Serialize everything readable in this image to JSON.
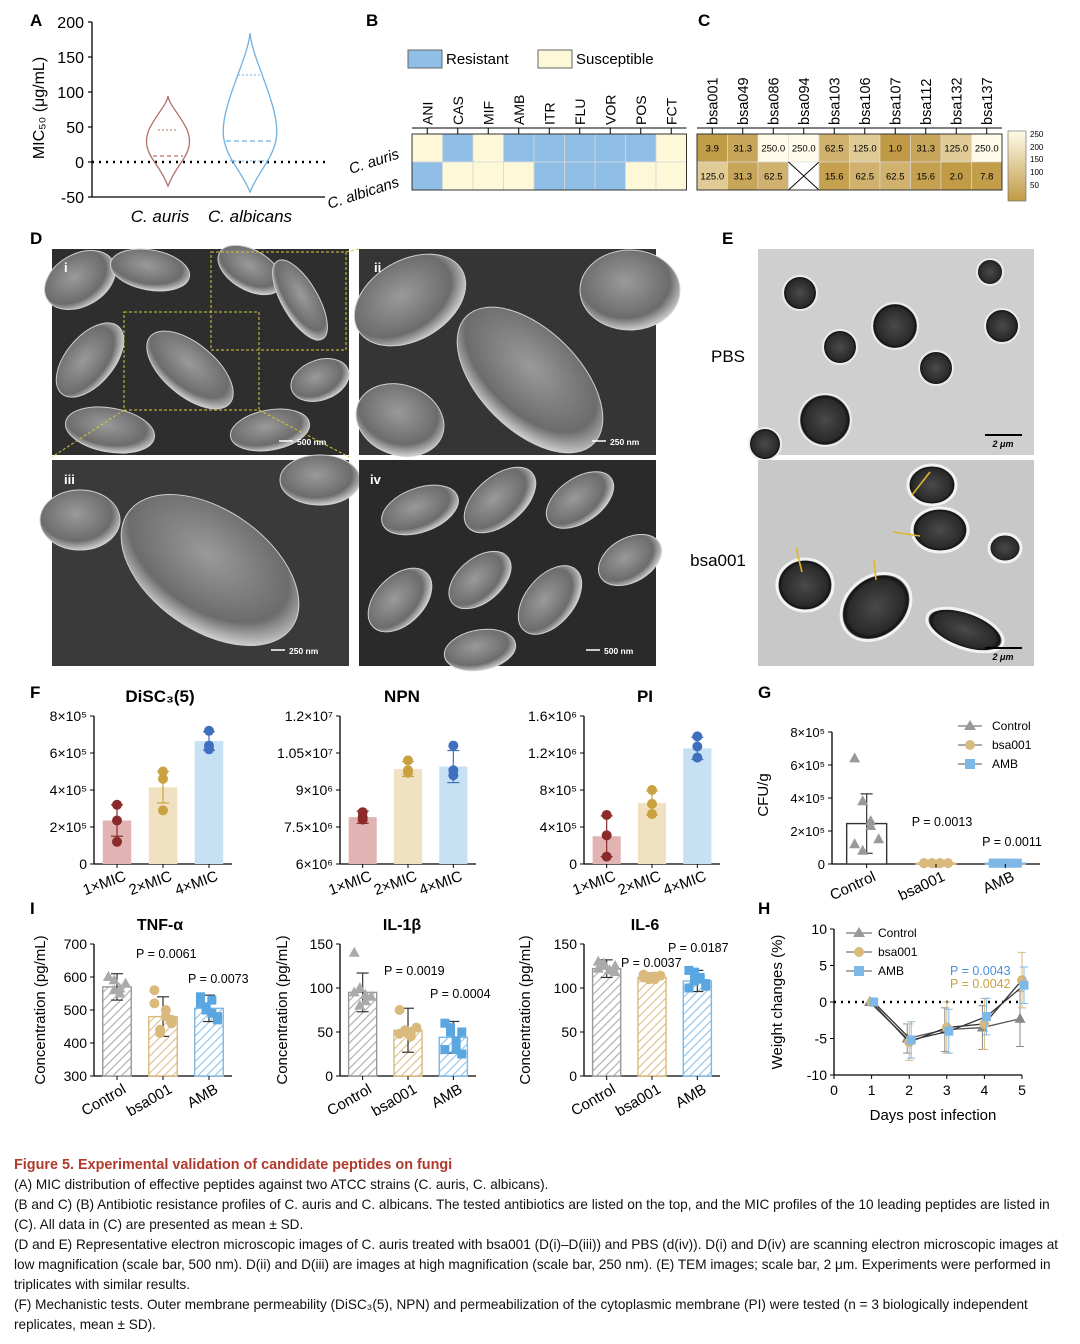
{
  "figure": {
    "panel_labels": [
      "A",
      "B",
      "C",
      "D",
      "E",
      "F",
      "G",
      "H",
      "I"
    ],
    "colors": {
      "auris": "#b5706a",
      "albicans": "#6fb0e0",
      "bsa001": "#d9b97c",
      "amb": "#7fb8e6",
      "control": "#999999",
      "dark_red": "#8b2a2a",
      "gold": "#c9a23f",
      "blue": "#3f6fbf"
    }
  },
  "panelA": {
    "ylabel": "MIC₅₀ (μg/mL)",
    "yticks": [
      "200",
      "150",
      "100",
      "50",
      "0",
      "-50"
    ],
    "categories": [
      "C. auris",
      "C. albicans"
    ]
  },
  "panelB": {
    "legend": [
      {
        "label": "Resistant",
        "color": "#8fbfe6"
      },
      {
        "label": "Susceptible",
        "color": "#fdf8d8"
      }
    ],
    "drugs": [
      "ANI",
      "CAS",
      "MIF",
      "AMB",
      "ITR",
      "FLU",
      "VOR",
      "POS",
      "FCT"
    ],
    "strains": [
      "C. auris",
      "C. albicans"
    ],
    "matrix": [
      [
        "S",
        "R",
        "S",
        "R",
        "R",
        "R",
        "R",
        "R",
        "S"
      ],
      [
        "R",
        "S",
        "S",
        "S",
        "R",
        "R",
        "R",
        "S",
        "S"
      ]
    ]
  },
  "panelC": {
    "peptides": [
      "bsa001",
      "bsa049",
      "bsa086",
      "bsa094",
      "bsa103",
      "bsa106",
      "bsa107",
      "bsa112",
      "bsa132",
      "bsa137"
    ],
    "values": [
      [
        "3.9",
        "31.3",
        "250.0",
        "250.0",
        "62.5",
        "125.0",
        "1.0",
        "31.3",
        "125.0",
        "250.0"
      ],
      [
        "125.0",
        "31.3",
        "62.5",
        "X",
        "15.6",
        "62.5",
        "62.5",
        "15.6",
        "2.0",
        "7.8"
      ]
    ],
    "scale_ticks": [
      "250",
      "200",
      "150",
      "100",
      "50"
    ]
  },
  "panelD": {
    "sub_labels": [
      "i",
      "ii",
      "iii",
      "iv"
    ],
    "scale_bars": [
      "500 nm",
      "250 nm",
      "250 nm",
      "500 nm"
    ]
  },
  "panelE": {
    "rows": [
      "PBS",
      "bsa001"
    ],
    "scale_bar": "2 μm"
  },
  "panelF": {
    "titles": [
      "DiSC₃(5)",
      "NPN",
      "PI"
    ],
    "categories": [
      "1×MIC",
      "2×MIC",
      "4×MIC"
    ],
    "yticks": [
      [
        "8×10⁵",
        "6×10⁵",
        "4×10⁵",
        "2×10⁵",
        "0"
      ],
      [
        "1.2×10⁷",
        "1.05×10⁷",
        "9×10⁶",
        "7.5×10⁶",
        "6×10⁶"
      ],
      [
        "1.6×10⁶",
        "1.2×10⁶",
        "8×10⁵",
        "4×10⁵",
        "0"
      ]
    ]
  },
  "panelG": {
    "ylabel": "CFU/g",
    "yticks": [
      "8×10⁵",
      "6×10⁵",
      "4×10⁵",
      "2×10⁵",
      "0"
    ],
    "categories": [
      "Control",
      "bsa001",
      "AMB"
    ],
    "legend": [
      "Control",
      "bsa001",
      "AMB"
    ],
    "pvalues": [
      "P = 0.0013",
      "P = 0.0011"
    ]
  },
  "panelH": {
    "ylabel": "Weight changes (%)",
    "xlabel": "Days post infection",
    "yticks": [
      "10",
      "5",
      "0",
      "-5",
      "-10"
    ],
    "xticks": [
      "0",
      "1",
      "2",
      "3",
      "4",
      "5"
    ],
    "legend": [
      "Control",
      "bsa001",
      "AMB"
    ],
    "pvalues": [
      "P = 0.0043",
      "P = 0.0042"
    ]
  },
  "panelI": {
    "titles": [
      "TNF-α",
      "IL-1β",
      "IL-6"
    ],
    "ylabel": "Concentration (pg/mL)",
    "categories": [
      "Control",
      "bsa001",
      "AMB"
    ],
    "yticks": [
      [
        "700",
        "600",
        "500",
        "400",
        "300"
      ],
      [
        "150",
        "100",
        "50",
        "0"
      ],
      [
        "150",
        "100",
        "50",
        "0"
      ]
    ],
    "pvalues": [
      [
        "P = 0.0061",
        "P = 0.0073"
      ],
      [
        "P = 0.0019",
        "P = 0.0004"
      ],
      [
        "P = 0.0037",
        "P = 0.0187"
      ]
    ]
  },
  "chart_data": [
    {
      "id": "F1",
      "type": "bar",
      "title": "DiSC₃(5)",
      "categories": [
        "1×MIC",
        "2×MIC",
        "4×MIC"
      ],
      "values": [
        235000,
        415000,
        665000
      ],
      "ylim": [
        0,
        800000
      ],
      "points": [
        [
          320000,
          235000,
          120000
        ],
        [
          500000,
          460000,
          290000
        ],
        [
          720000,
          640000,
          620000
        ]
      ],
      "sd": [
        85000,
        85000,
        50000
      ]
    },
    {
      "id": "F2",
      "type": "bar",
      "title": "NPN",
      "categories": [
        "1×MIC",
        "2×MIC",
        "4×MIC"
      ],
      "values": [
        7900000,
        9850000,
        9950000
      ],
      "ylim": [
        6000000,
        12000000
      ],
      "points": [
        [
          8100000,
          7800000,
          7900000
        ],
        [
          10200000,
          9800000,
          9700000
        ],
        [
          10800000,
          9800000,
          9600000
        ]
      ],
      "sd": [
        250000,
        300000,
        650000
      ]
    },
    {
      "id": "F3",
      "type": "bar",
      "title": "PI",
      "categories": [
        "1×MIC",
        "2×MIC",
        "4×MIC"
      ],
      "values": [
        300000,
        660000,
        1250000
      ],
      "ylim": [
        0,
        1600000
      ],
      "points": [
        [
          530000,
          310000,
          80000
        ],
        [
          800000,
          650000,
          540000
        ],
        [
          1380000,
          1270000,
          1150000
        ]
      ],
      "sd": [
        220000,
        130000,
        120000
      ]
    },
    {
      "id": "G",
      "type": "bar",
      "ylabel": "CFU/g",
      "categories": [
        "Control",
        "bsa001",
        "AMB"
      ],
      "values": [
        245000,
        5000,
        5000
      ],
      "ylim": [
        0,
        800000
      ],
      "points": [
        [
          640000,
          380000,
          230000,
          150000,
          120000,
          80000,
          260000
        ],
        [
          5000,
          5000,
          5000,
          5000,
          5000,
          5000,
          5000
        ],
        [
          5000,
          5000,
          5000,
          5000,
          5000,
          5000,
          5000
        ]
      ],
      "sd": [
        180000,
        0,
        0
      ]
    },
    {
      "id": "I1",
      "type": "bar",
      "title": "TNF-α",
      "categories": [
        "Control",
        "bsa001",
        "AMB"
      ],
      "values": [
        570,
        480,
        505
      ],
      "ylim": [
        300,
        700
      ],
      "points": [
        [
          600,
          560,
          550,
          580,
          600,
          590,
          565
        ],
        [
          560,
          430,
          480,
          470,
          520,
          440,
          500,
          460
        ],
        [
          540,
          510,
          490,
          480,
          520,
          500,
          530,
          470
        ]
      ],
      "sd": [
        40,
        60,
        40
      ]
    },
    {
      "id": "I2",
      "type": "bar",
      "title": "IL-1β",
      "categories": [
        "Control",
        "bsa001",
        "AMB"
      ],
      "values": [
        95,
        52,
        44
      ],
      "ylim": [
        0,
        150
      ],
      "points": [
        [
          140,
          100,
          85,
          90,
          95,
          80,
          92
        ],
        [
          75,
          50,
          45,
          55,
          48,
          52,
          50
        ],
        [
          60,
          50,
          40,
          25,
          30,
          55,
          30,
          50
        ]
      ],
      "sd": [
        22,
        25,
        18
      ]
    },
    {
      "id": "I3",
      "type": "bar",
      "title": "IL-6",
      "categories": [
        "Control",
        "bsa001",
        "AMB"
      ],
      "values": [
        122,
        112,
        108
      ],
      "ylim": [
        0,
        150
      ],
      "points": [
        [
          130,
          125,
          120,
          118,
          122,
          128,
          120,
          125
        ],
        [
          115,
          112,
          110,
          114,
          112,
          110,
          113
        ],
        [
          120,
          118,
          110,
          105,
          100,
          108,
          112,
          102
        ]
      ],
      "sd": [
        10,
        5,
        12
      ]
    },
    {
      "id": "H",
      "type": "line",
      "xlabel": "Days post infection",
      "ylabel": "Weight changes (%)",
      "x": [
        1,
        2,
        3,
        4,
        5
      ],
      "ylim": [
        -10,
        10
      ],
      "xlim": [
        0,
        5
      ],
      "series": [
        {
          "name": "Control",
          "values": [
            0,
            -5,
            -3.8,
            -3.5,
            -2.3
          ],
          "sd": [
            0,
            2,
            3,
            3,
            3.8
          ]
        },
        {
          "name": "bsa001",
          "values": [
            0,
            -5.5,
            -3.5,
            -3,
            3
          ],
          "sd": [
            0,
            2.5,
            3.5,
            3.5,
            3.8
          ]
        },
        {
          "name": "AMB",
          "values": [
            0,
            -5.2,
            -4,
            -2,
            2.3
          ],
          "sd": [
            0,
            2.5,
            3,
            2.5,
            2.5
          ]
        }
      ]
    }
  ],
  "caption": {
    "title": "Figure 5. Experimental validation of candidate peptides on fungi",
    "lines": [
      "(A) MIC distribution of effective peptides against two ATCC strains (C. auris, C. albicans).",
      "(B and C) (B) Antibiotic resistance profiles of C. auris and C. albicans. The tested antibiotics are listed on the top, and the MIC profiles of the 10 leading peptides are listed in (C). All data in (C) are presented as mean ± SD.",
      "(D and E) Representative electron microscopic images of C. auris treated with bsa001 (D(i)–D(iii)) and PBS (d(iv)). D(i) and D(iv) are scanning electron microscopic images at low magnification (scale bar, 500 nm). D(ii) and D(iii) are images at high magnification (scale bar, 250 nm). (E) TEM images; scale bar, 2 μm. Experiments were performed in triplicates with similar results.",
      "(F) Mechanistic tests. Outer membrane permeability (DiSC₃(5), NPN) and permeabilization of the cytoplasmic membrane (PI) were tested (n = 3 biologically independent replicates, mean ± SD)."
    ]
  }
}
